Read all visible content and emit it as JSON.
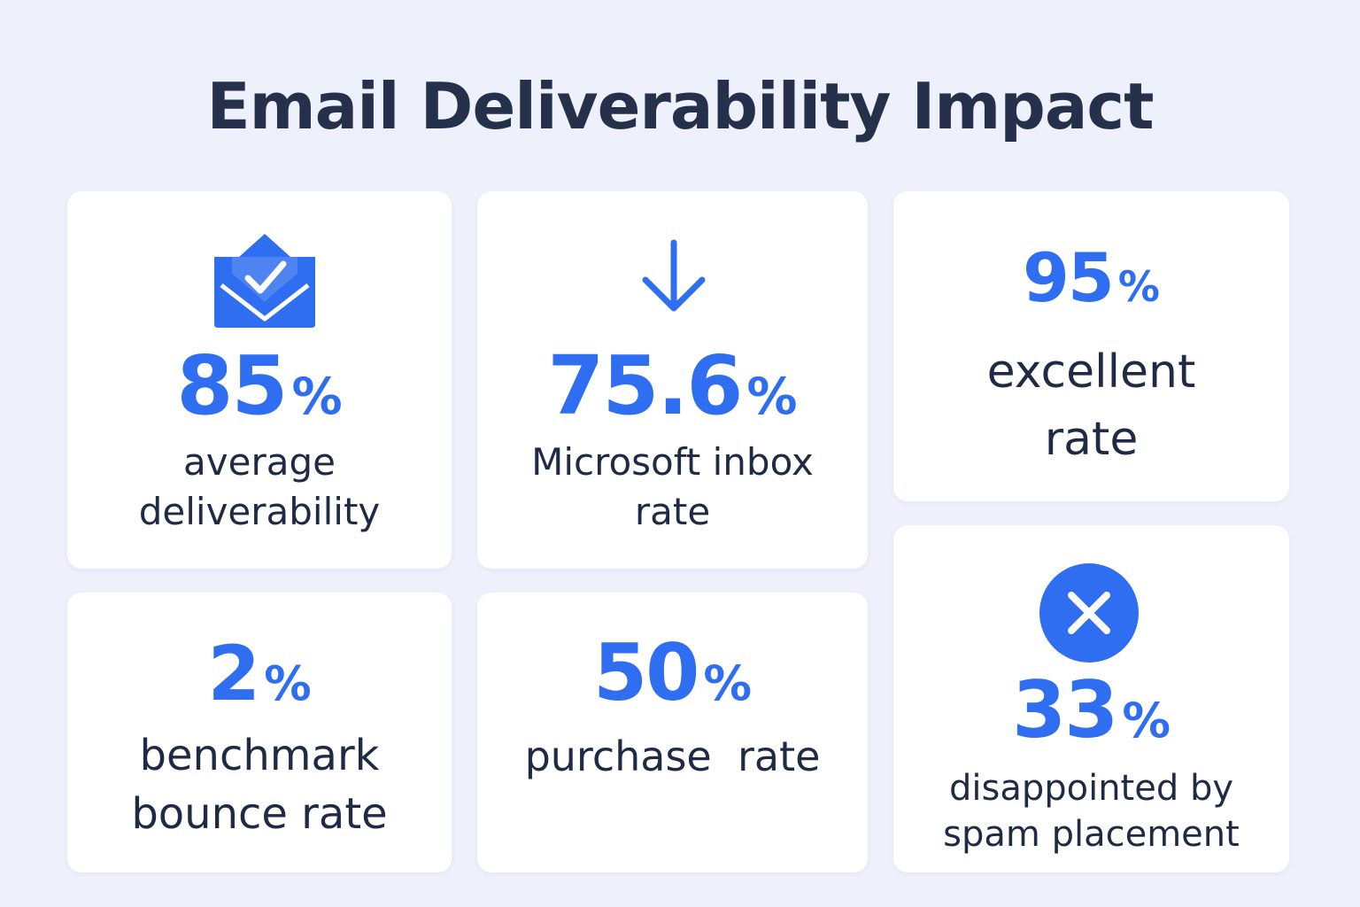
{
  "page": {
    "title": "Email Deliverability Impact"
  },
  "cards": {
    "avg_deliverability": {
      "icon": "envelope-check-icon",
      "value": "85",
      "unit": "%",
      "label_line1": "average",
      "label_line2": "deliverability"
    },
    "microsoft_inbox": {
      "icon": "arrow-down-icon",
      "value": "75.6",
      "unit": "%",
      "label_line1": "Microsoft inbox",
      "label_line2": "rate"
    },
    "excellent_rate": {
      "value": "95",
      "unit": "%",
      "label_line1": "excellent",
      "label_line2": "rate"
    },
    "bounce_rate": {
      "value": "2",
      "unit": "%",
      "label_line1": "benchmark",
      "label_line2": "bounce rate"
    },
    "purchase_rate": {
      "value": "50",
      "unit": "%",
      "label_line1": "purchase  rate"
    },
    "spam_placement": {
      "icon": "x-circle-icon",
      "value": "33",
      "unit": "%",
      "label_line1": "disappointed by",
      "label_line2": "spam placement"
    }
  },
  "colors": {
    "background": "#eef0fc",
    "card": "#ffffff",
    "accent": "#2f6ef0",
    "text": "#1f2a44"
  }
}
